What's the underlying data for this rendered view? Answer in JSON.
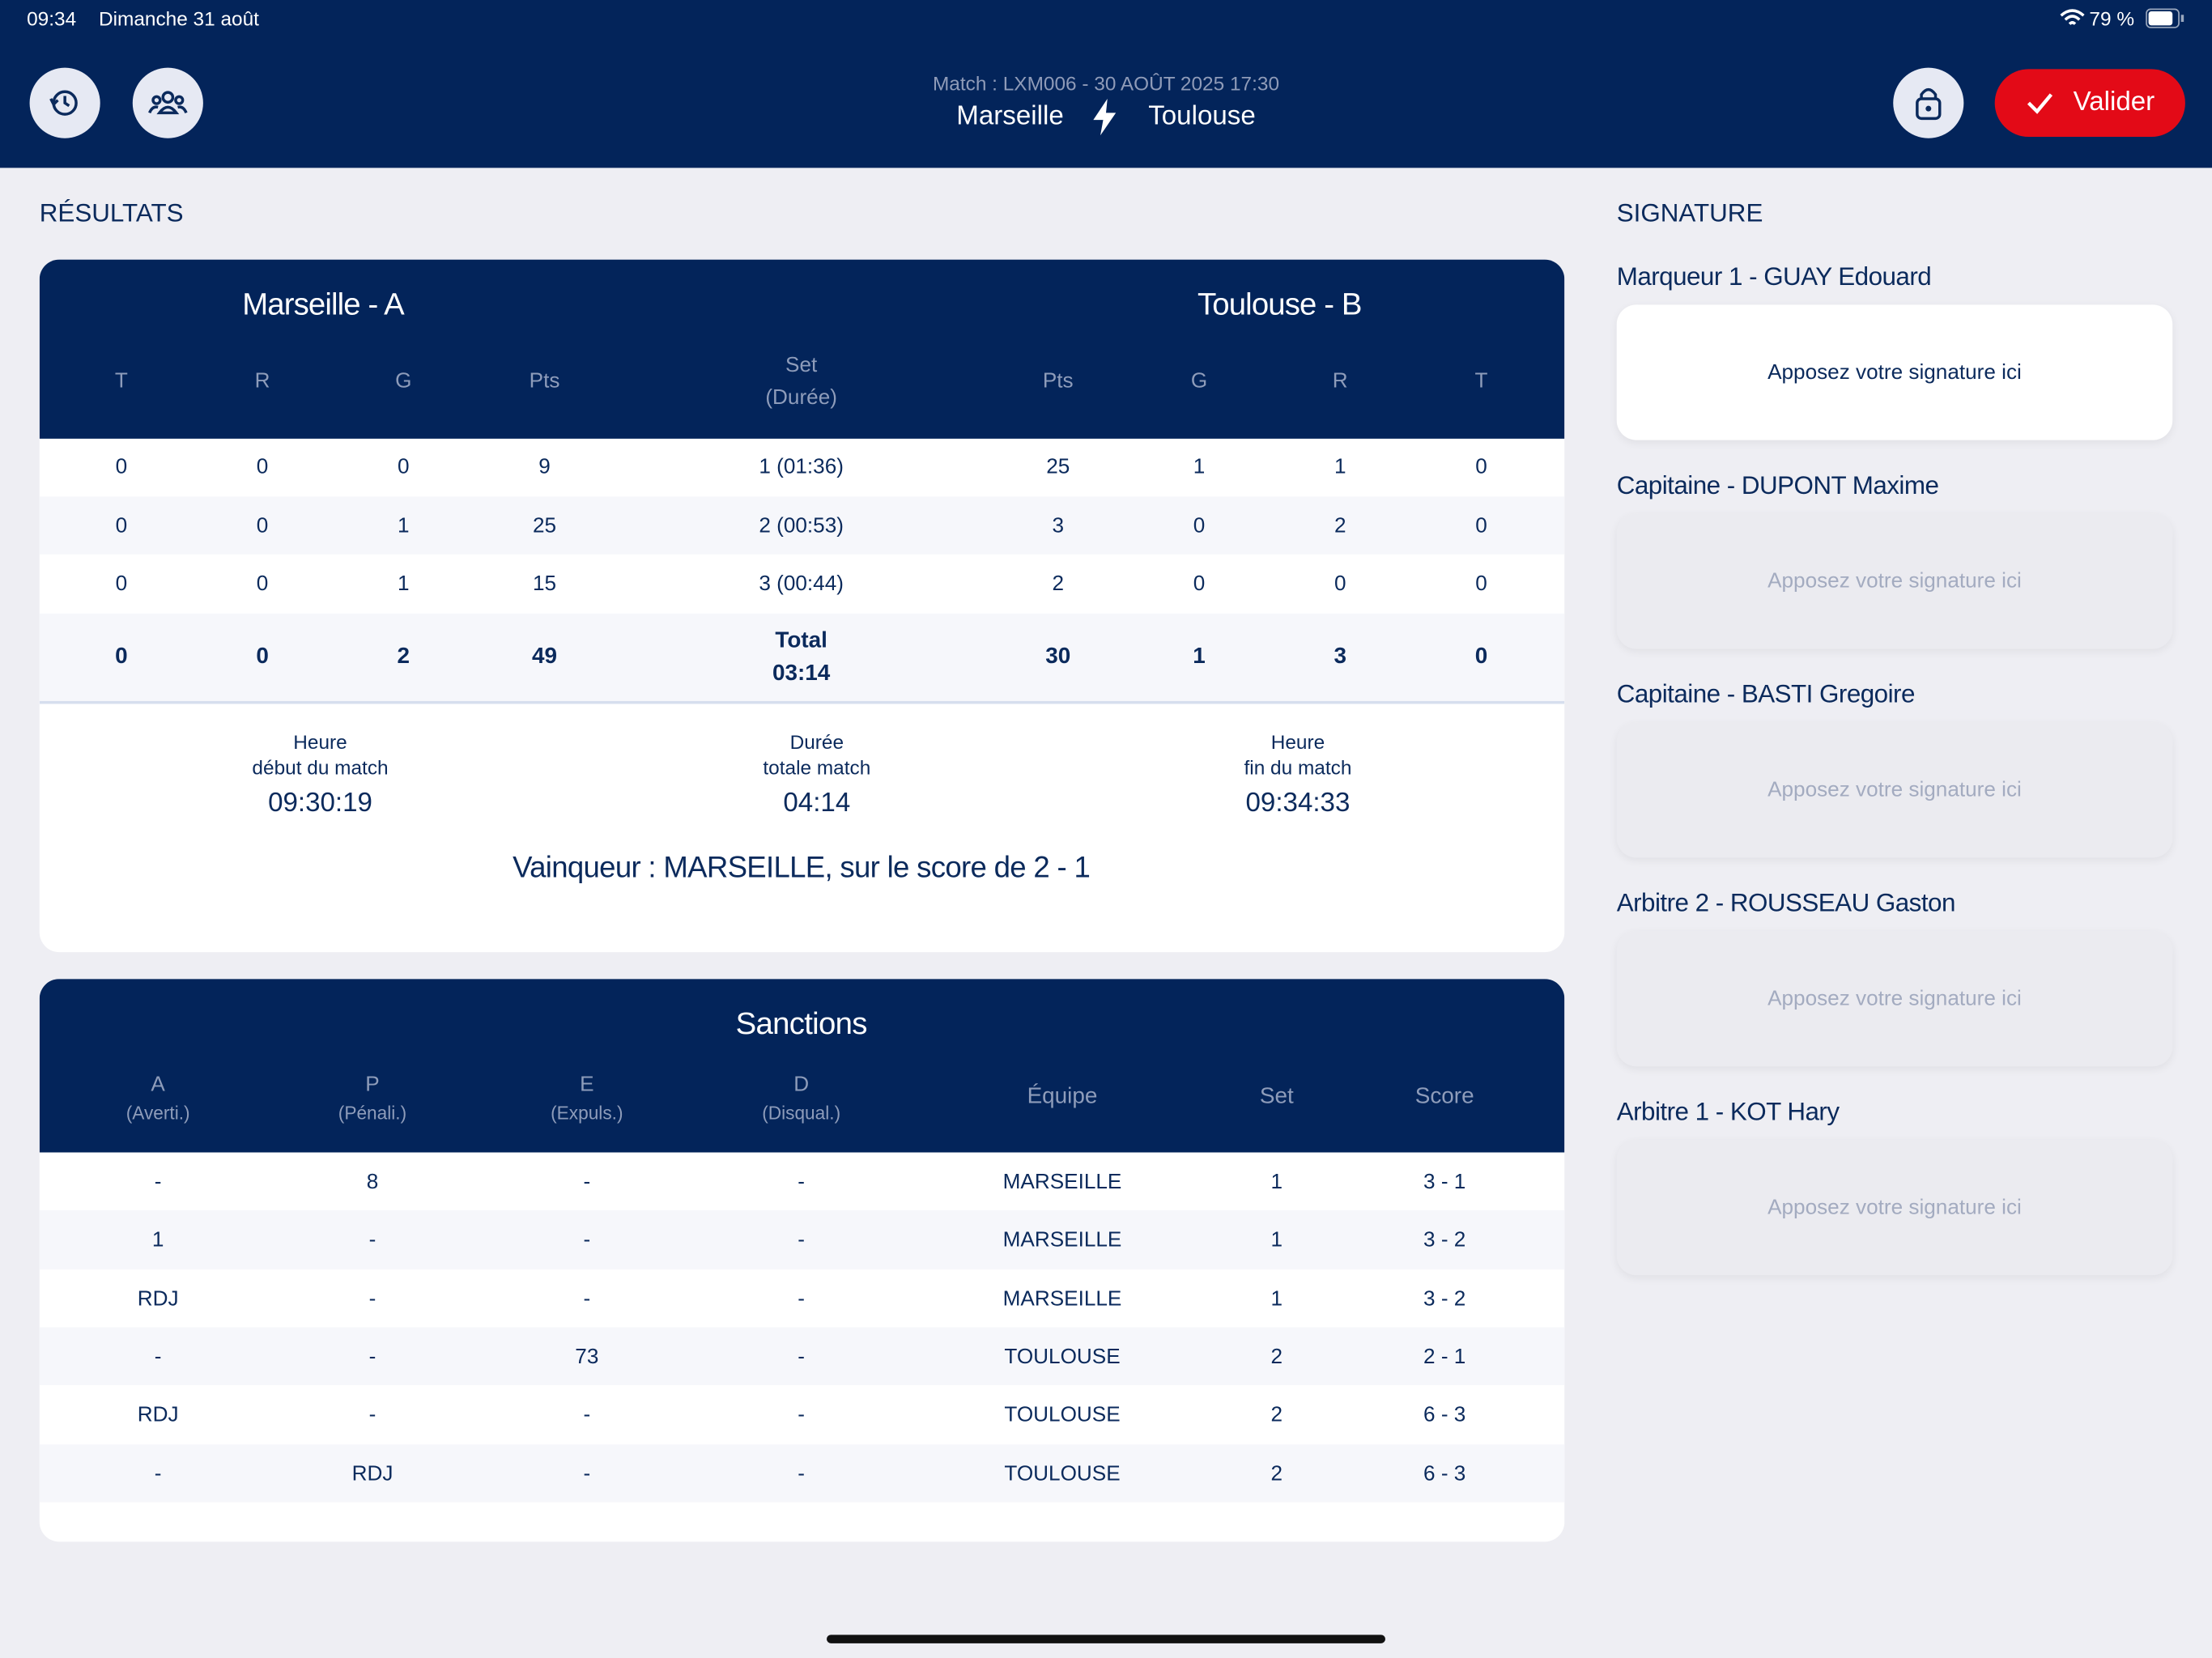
{
  "status_bar": {
    "time": "09:34",
    "date": "Dimanche 31 août",
    "battery": "79 %"
  },
  "header": {
    "match_info": "Match : LXM006 - 30 AOÛT 2025 17:30",
    "team_home": "Marseille",
    "team_away": "Toulouse",
    "validate_button": "Valider"
  },
  "results": {
    "title": "RÉSULTATS",
    "team_a": "Marseille - A",
    "team_b": "Toulouse - B",
    "columns": [
      "T",
      "R",
      "G",
      "Pts",
      [
        "Set",
        "(Durée)"
      ],
      "Pts",
      "G",
      "R",
      "T"
    ],
    "rows": [
      [
        0,
        0,
        0,
        9,
        "1 (01:36)",
        25,
        1,
        1,
        0
      ],
      [
        0,
        0,
        1,
        25,
        "2 (00:53)",
        3,
        0,
        2,
        0
      ],
      [
        0,
        0,
        1,
        15,
        "3 (00:44)",
        2,
        0,
        0,
        0
      ]
    ],
    "total": [
      0,
      0,
      2,
      49,
      [
        "Total",
        "03:14"
      ],
      30,
      1,
      3,
      0
    ],
    "times": [
      {
        "label": [
          "Heure",
          "début du match"
        ],
        "value": "09:30:19"
      },
      {
        "label": [
          "Durée",
          "totale match"
        ],
        "value": "04:14"
      },
      {
        "label": [
          "Heure",
          "fin du match"
        ],
        "value": "09:34:33"
      }
    ],
    "winner": "Vainqueur : MARSEILLE, sur le score de 2 - 1"
  },
  "sanctions": {
    "title": "Sanctions",
    "columns": [
      [
        "A",
        "(Averti.)"
      ],
      [
        "P",
        "(Pénali.)"
      ],
      [
        "E",
        "(Expuls.)"
      ],
      [
        "D",
        "(Disqual.)"
      ],
      [
        "Équipe"
      ],
      [
        "Set"
      ],
      [
        "Score"
      ]
    ],
    "rows": [
      [
        "-",
        "8",
        "-",
        "-",
        "MARSEILLE",
        "1",
        "3 - 1"
      ],
      [
        "1",
        "-",
        "-",
        "-",
        "MARSEILLE",
        "1",
        "3 - 2"
      ],
      [
        "RDJ",
        "-",
        "-",
        "-",
        "MARSEILLE",
        "1",
        "3 - 2"
      ],
      [
        "-",
        "-",
        "73",
        "-",
        "TOULOUSE",
        "2",
        "2 - 1"
      ],
      [
        "RDJ",
        "-",
        "-",
        "-",
        "TOULOUSE",
        "2",
        "6 - 3"
      ],
      [
        "-",
        "RDJ",
        "-",
        "-",
        "TOULOUSE",
        "2",
        "6 - 3"
      ]
    ]
  },
  "signature": {
    "title": "SIGNATURE",
    "items": [
      {
        "label": "Marqueur 1 - GUAY Edouard",
        "placeholder": "Apposez votre signature ici"
      },
      {
        "label": "Capitaine - DUPONT Maxime",
        "placeholder": "Apposez votre signature ici"
      },
      {
        "label": "Capitaine - BASTI Gregoire",
        "placeholder": "Apposez votre signature ici"
      },
      {
        "label": "Arbitre 2 - ROUSSEAU Gaston",
        "placeholder": "Apposez votre signature ici"
      },
      {
        "label": "Arbitre 1 - KOT Hary",
        "placeholder": "Apposez votre signature ici"
      }
    ]
  }
}
